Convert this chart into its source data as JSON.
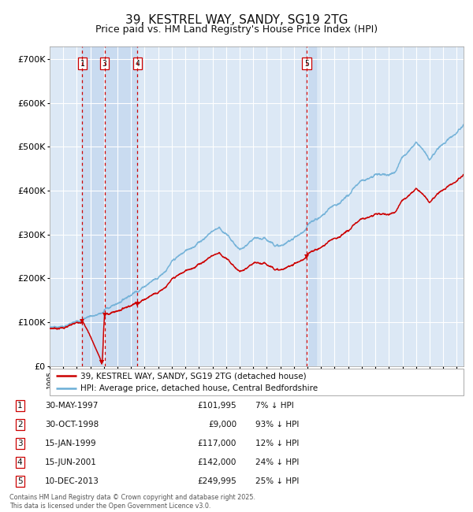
{
  "title": "39, KESTREL WAY, SANDY, SG19 2TG",
  "subtitle": "Price paid vs. HM Land Registry's House Price Index (HPI)",
  "title_fontsize": 11,
  "subtitle_fontsize": 9,
  "background_color": "#ffffff",
  "plot_bg_color": "#dce8f5",
  "grid_color": "#ffffff",
  "sale_dates_num": [
    1997.41,
    1998.83,
    1999.04,
    2001.46,
    2013.94
  ],
  "sale_prices": [
    101995,
    9000,
    117000,
    142000,
    249995
  ],
  "sale_labels": [
    "1",
    "2",
    "3",
    "4",
    "5"
  ],
  "shown_in_chart": [
    0,
    2,
    3,
    4
  ],
  "vline_color": "#cc0000",
  "hpi_line_color": "#6baed6",
  "price_line_color": "#cc0000",
  "shade_color": "#c6d9f0",
  "legend_entries": [
    "39, KESTREL WAY, SANDY, SG19 2TG (detached house)",
    "HPI: Average price, detached house, Central Bedfordshire"
  ],
  "table_rows": [
    [
      "1",
      "30-MAY-1997",
      "£101,995",
      "7% ↓ HPI"
    ],
    [
      "2",
      "30-OCT-1998",
      "£9,000",
      "93% ↓ HPI"
    ],
    [
      "3",
      "15-JAN-1999",
      "£117,000",
      "12% ↓ HPI"
    ],
    [
      "4",
      "15-JUN-2001",
      "£142,000",
      "24% ↓ HPI"
    ],
    [
      "5",
      "10-DEC-2013",
      "£249,995",
      "25% ↓ HPI"
    ]
  ],
  "footer": "Contains HM Land Registry data © Crown copyright and database right 2025.\nThis data is licensed under the Open Government Licence v3.0.",
  "yticks": [
    0,
    100000,
    200000,
    300000,
    400000,
    500000,
    600000,
    700000
  ],
  "ytick_labels": [
    "£0",
    "£100K",
    "£200K",
    "£300K",
    "£400K",
    "£500K",
    "£600K",
    "£700K"
  ],
  "ylim": [
    0,
    730000
  ],
  "xlim_start": 1995.0,
  "xlim_end": 2025.5,
  "hpi_anchors_t": [
    1995.0,
    1996.0,
    1997.0,
    1997.41,
    1998.0,
    1998.83,
    1999.0,
    1999.04,
    2000.0,
    2001.0,
    2001.46,
    2002.0,
    2003.0,
    2004.0,
    2005.0,
    2006.0,
    2007.0,
    2007.5,
    2008.0,
    2009.0,
    2009.5,
    2010.0,
    2011.0,
    2012.0,
    2012.5,
    2013.0,
    2013.94,
    2014.0,
    2015.0,
    2016.0,
    2017.0,
    2018.0,
    2019.0,
    2020.0,
    2020.5,
    2021.0,
    2021.5,
    2022.0,
    2022.5,
    2023.0,
    2023.5,
    2024.0,
    2024.5,
    2025.0,
    2025.5
  ],
  "hpi_anchors_v": [
    88000,
    93000,
    100000,
    109000,
    118000,
    125000,
    128000,
    133000,
    148000,
    175000,
    185000,
    200000,
    225000,
    260000,
    280000,
    305000,
    335000,
    345000,
    330000,
    295000,
    300000,
    310000,
    305000,
    295000,
    300000,
    315000,
    333000,
    340000,
    360000,
    390000,
    410000,
    440000,
    460000,
    455000,
    470000,
    500000,
    520000,
    545000,
    530000,
    510000,
    530000,
    545000,
    565000,
    575000,
    595000
  ]
}
